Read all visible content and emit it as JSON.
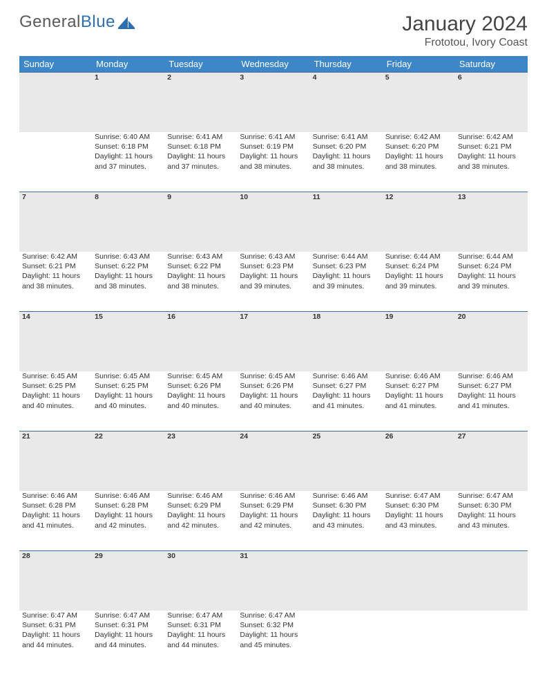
{
  "brand": {
    "part1": "General",
    "part2": "Blue"
  },
  "title": "January 2024",
  "location": "Frototou, Ivory Coast",
  "colors": {
    "header_bg": "#3d87c9",
    "header_text": "#ffffff",
    "daynum_bg": "#e9e9e9",
    "daynum_border": "#3d6f9e",
    "body_text": "#333333",
    "brand_gray": "#5a5a5a",
    "brand_blue": "#2f6fb0"
  },
  "weekdays": [
    "Sunday",
    "Monday",
    "Tuesday",
    "Wednesday",
    "Thursday",
    "Friday",
    "Saturday"
  ],
  "weeks": [
    {
      "nums": [
        "",
        "1",
        "2",
        "3",
        "4",
        "5",
        "6"
      ],
      "cells": [
        null,
        {
          "sunrise": "6:40 AM",
          "sunset": "6:18 PM",
          "daylight": "11 hours and 37 minutes."
        },
        {
          "sunrise": "6:41 AM",
          "sunset": "6:18 PM",
          "daylight": "11 hours and 37 minutes."
        },
        {
          "sunrise": "6:41 AM",
          "sunset": "6:19 PM",
          "daylight": "11 hours and 38 minutes."
        },
        {
          "sunrise": "6:41 AM",
          "sunset": "6:20 PM",
          "daylight": "11 hours and 38 minutes."
        },
        {
          "sunrise": "6:42 AM",
          "sunset": "6:20 PM",
          "daylight": "11 hours and 38 minutes."
        },
        {
          "sunrise": "6:42 AM",
          "sunset": "6:21 PM",
          "daylight": "11 hours and 38 minutes."
        }
      ]
    },
    {
      "nums": [
        "7",
        "8",
        "9",
        "10",
        "11",
        "12",
        "13"
      ],
      "cells": [
        {
          "sunrise": "6:42 AM",
          "sunset": "6:21 PM",
          "daylight": "11 hours and 38 minutes."
        },
        {
          "sunrise": "6:43 AM",
          "sunset": "6:22 PM",
          "daylight": "11 hours and 38 minutes."
        },
        {
          "sunrise": "6:43 AM",
          "sunset": "6:22 PM",
          "daylight": "11 hours and 38 minutes."
        },
        {
          "sunrise": "6:43 AM",
          "sunset": "6:23 PM",
          "daylight": "11 hours and 39 minutes."
        },
        {
          "sunrise": "6:44 AM",
          "sunset": "6:23 PM",
          "daylight": "11 hours and 39 minutes."
        },
        {
          "sunrise": "6:44 AM",
          "sunset": "6:24 PM",
          "daylight": "11 hours and 39 minutes."
        },
        {
          "sunrise": "6:44 AM",
          "sunset": "6:24 PM",
          "daylight": "11 hours and 39 minutes."
        }
      ]
    },
    {
      "nums": [
        "14",
        "15",
        "16",
        "17",
        "18",
        "19",
        "20"
      ],
      "cells": [
        {
          "sunrise": "6:45 AM",
          "sunset": "6:25 PM",
          "daylight": "11 hours and 40 minutes."
        },
        {
          "sunrise": "6:45 AM",
          "sunset": "6:25 PM",
          "daylight": "11 hours and 40 minutes."
        },
        {
          "sunrise": "6:45 AM",
          "sunset": "6:26 PM",
          "daylight": "11 hours and 40 minutes."
        },
        {
          "sunrise": "6:45 AM",
          "sunset": "6:26 PM",
          "daylight": "11 hours and 40 minutes."
        },
        {
          "sunrise": "6:46 AM",
          "sunset": "6:27 PM",
          "daylight": "11 hours and 41 minutes."
        },
        {
          "sunrise": "6:46 AM",
          "sunset": "6:27 PM",
          "daylight": "11 hours and 41 minutes."
        },
        {
          "sunrise": "6:46 AM",
          "sunset": "6:27 PM",
          "daylight": "11 hours and 41 minutes."
        }
      ]
    },
    {
      "nums": [
        "21",
        "22",
        "23",
        "24",
        "25",
        "26",
        "27"
      ],
      "cells": [
        {
          "sunrise": "6:46 AM",
          "sunset": "6:28 PM",
          "daylight": "11 hours and 41 minutes."
        },
        {
          "sunrise": "6:46 AM",
          "sunset": "6:28 PM",
          "daylight": "11 hours and 42 minutes."
        },
        {
          "sunrise": "6:46 AM",
          "sunset": "6:29 PM",
          "daylight": "11 hours and 42 minutes."
        },
        {
          "sunrise": "6:46 AM",
          "sunset": "6:29 PM",
          "daylight": "11 hours and 42 minutes."
        },
        {
          "sunrise": "6:46 AM",
          "sunset": "6:30 PM",
          "daylight": "11 hours and 43 minutes."
        },
        {
          "sunrise": "6:47 AM",
          "sunset": "6:30 PM",
          "daylight": "11 hours and 43 minutes."
        },
        {
          "sunrise": "6:47 AM",
          "sunset": "6:30 PM",
          "daylight": "11 hours and 43 minutes."
        }
      ]
    },
    {
      "nums": [
        "28",
        "29",
        "30",
        "31",
        "",
        "",
        ""
      ],
      "cells": [
        {
          "sunrise": "6:47 AM",
          "sunset": "6:31 PM",
          "daylight": "11 hours and 44 minutes."
        },
        {
          "sunrise": "6:47 AM",
          "sunset": "6:31 PM",
          "daylight": "11 hours and 44 minutes."
        },
        {
          "sunrise": "6:47 AM",
          "sunset": "6:31 PM",
          "daylight": "11 hours and 44 minutes."
        },
        {
          "sunrise": "6:47 AM",
          "sunset": "6:32 PM",
          "daylight": "11 hours and 45 minutes."
        },
        null,
        null,
        null
      ]
    }
  ],
  "labels": {
    "sunrise": "Sunrise:",
    "sunset": "Sunset:",
    "daylight": "Daylight:"
  }
}
